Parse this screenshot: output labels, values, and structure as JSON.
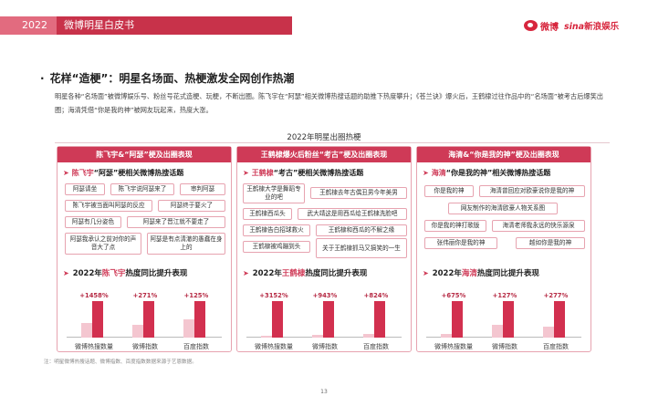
{
  "header": {
    "year": "2022",
    "title": "微博明星白皮书",
    "logo_weibo": "微博",
    "logo_sina_brand": "sina",
    "logo_sina_sub": "新浪娱乐"
  },
  "section": {
    "bullet": "·",
    "title": "花样“造梗”：明星名场面、热梗激发全网创作热潮",
    "paragraph": "明星各种“名场面”被微博娱乐号、粉丝号花式造梗、玩梗，不断出圈。陈飞宇在“阿瑟”相关微博热搜话题的助推下热度攀升；《苍兰诀》爆火后，王鹤棣过往作品中的“名场面”被考古后爆笑出圈；海清凭借“你是我的神”被网友玩起来，热度大涨。"
  },
  "chart_title": "2022年明星出圈热梗",
  "panels": [
    {
      "title": "陈飞宇&“阿瑟”梗及出圈表现",
      "sub_name": "陈飞宇",
      "sub_rest": "“阿瑟”梗相关微博热搜话题",
      "tags": [
        "阿瑟请坐",
        "陈飞宇说阿瑟来了",
        "审判阿瑟",
        "陈飞宇被当面叫阿瑟的反应",
        "阿瑟终于要火了",
        "阿瑟有几分姿色",
        "阿瑟来了晋江就不要走了",
        "阿瑟我承认之前对你的声音大了点",
        "阿瑟是有点清澈的愚蠢在身上的"
      ],
      "bar_prefix": "2022年",
      "bar_name": "陈飞宇",
      "bar_suffix": "热度同比提升表现"
    },
    {
      "title": "王鹤棣爆火后粉丝“考古”梗及出圈表现",
      "sub_name": "王鹤棣",
      "sub_rest": "“考古”梗相关微博热搜话题",
      "tags": [
        "王鹤棣大学是舞蹈专业的吧",
        "王鹤棣去年古偶丑男今年美男",
        "王鹤棣西瓜头",
        "武大靖这是用西瓜给王鹤棣洗脸吧",
        "王鹤棣告白招球救火",
        "王鹤棣和西瓜的不解之缘",
        "王鹤棣被鸡蹦到头",
        "关于王鹤棣抓马又搞笑的一生"
      ],
      "bar_prefix": "2022年",
      "bar_name": "王鹤棣",
      "bar_suffix": "热度同比提升表现"
    },
    {
      "title": "海清&“你是我的神”梗及出圈表现",
      "sub_name": "海清",
      "sub_rest": "“你是我的神”相关微博热搜话题",
      "tags": [
        "你是我的神",
        "海清曾回应对欧豪说你是我的神",
        "网友制作的海清欧豪人物关系图",
        "你是我的神打歌版",
        "海清老师我永远的快乐源泉",
        "张伟丽你是我的神",
        "越如你是我的神"
      ],
      "bar_prefix": "2022年",
      "bar_name": "海清",
      "bar_suffix": "热度同比提升表现"
    }
  ],
  "chart_data": [
    {
      "type": "bar",
      "categories": [
        "微博热搜数量",
        "微博指数",
        "百度指数"
      ],
      "series": [
        {
          "values": [
            0.4,
            0.35,
            0.5
          ]
        },
        {
          "values": [
            1,
            1,
            1
          ]
        }
      ],
      "growth_labels": [
        "+1458%",
        "+271%",
        "+125%"
      ]
    },
    {
      "type": "bar",
      "categories": [
        "微博热搜数量",
        "微博指数",
        "百度指数"
      ],
      "series": [
        {
          "values": [
            0.05,
            0.07,
            0.1
          ]
        },
        {
          "values": [
            1,
            1,
            1
          ]
        }
      ],
      "growth_labels": [
        "+3152%",
        "+943%",
        "+824%"
      ]
    },
    {
      "type": "bar",
      "categories": [
        "微博热搜数量",
        "微博指数",
        "百度指数"
      ],
      "series": [
        {
          "values": [
            0.1,
            0.35,
            0.3
          ]
        },
        {
          "values": [
            1,
            1,
            1
          ]
        }
      ],
      "growth_labels": [
        "+675%",
        "+127%",
        "+277%"
      ]
    }
  ],
  "colors": {
    "accent": "#cf3a57",
    "light": "#f4c6d0",
    "header": "#c8324a"
  },
  "footnote": "注：明星微博热搜话题、微博指数、百度指数数据来源于艺恩数据。",
  "page_number": "13"
}
